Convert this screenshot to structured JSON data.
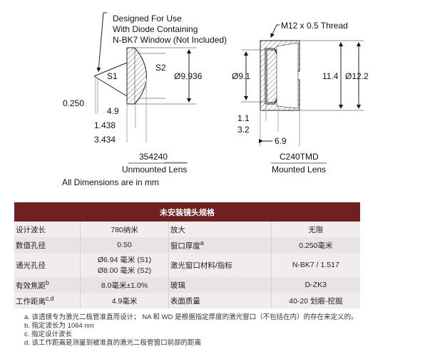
{
  "unmounted": {
    "note": [
      "Designed For Use",
      "With Diode Containing",
      "N-BK7 Window (Not Included)"
    ],
    "s1": "S1",
    "s2": "S2",
    "diameter": "Ø9.936",
    "dim_window": "0.250",
    "dim_wd": "4.9",
    "dim_ct": "1.438",
    "dim_total": "3.434",
    "part": "354240",
    "caption": "Unmounted Lens"
  },
  "mounted": {
    "thread": "M12 x 0.5 Thread",
    "inner_dia": "Ø9.1",
    "height": "11.4",
    "outer_dia": "Ø12.2",
    "dim_a": "1.1",
    "dim_b": "3.2",
    "dim_len": "6.9",
    "part": "C240TMD",
    "caption": "Mounted Lens"
  },
  "units_note": "All Dimensions are in mm",
  "table": {
    "title": "未安装镜头规格",
    "rows": [
      {
        "k1": "设计波长",
        "s1": "",
        "v1": [
          "780纳米"
        ],
        "k2": "放大",
        "s2": "",
        "v2": "无限"
      },
      {
        "k1": "数值孔径",
        "s1": "",
        "v1": [
          "0.50"
        ],
        "k2": "窗口厚度",
        "s2": "a",
        "v2": "0.250毫米"
      },
      {
        "k1": "通光孔径",
        "s1": "",
        "v1": [
          "Ø6.94 毫米 (S1)",
          "Ø8.00 毫米 (S2)"
        ],
        "k2": "激光窗口材料/指标",
        "s2": "",
        "v2": "N-BK7 / 1.517"
      },
      {
        "k1": "有效焦距",
        "s1": "b",
        "v1": [
          "8.0毫米±1.0%"
        ],
        "k2": "玻璃",
        "s2": "",
        "v2": "D-ZK3"
      },
      {
        "k1": "工作距离",
        "s1": "c,d",
        "v1": [
          "4.9毫米"
        ],
        "k2": "表面质量",
        "s2": "",
        "v2": "40-20 划痕-挖掘"
      }
    ]
  },
  "footnotes": [
    "a. 该透镜专为激光二极管准直而设计； NA 和 WD 是根据指定厚度的激光窗口（不包括在内）的存在来定义的。",
    "b. 指定波长为 1064 nm",
    "c. 指定设计波长",
    "d. 该工作距离是测量到被准直的激光二极管窗口前部的距离"
  ],
  "colors": {
    "header": "#6e2023"
  }
}
